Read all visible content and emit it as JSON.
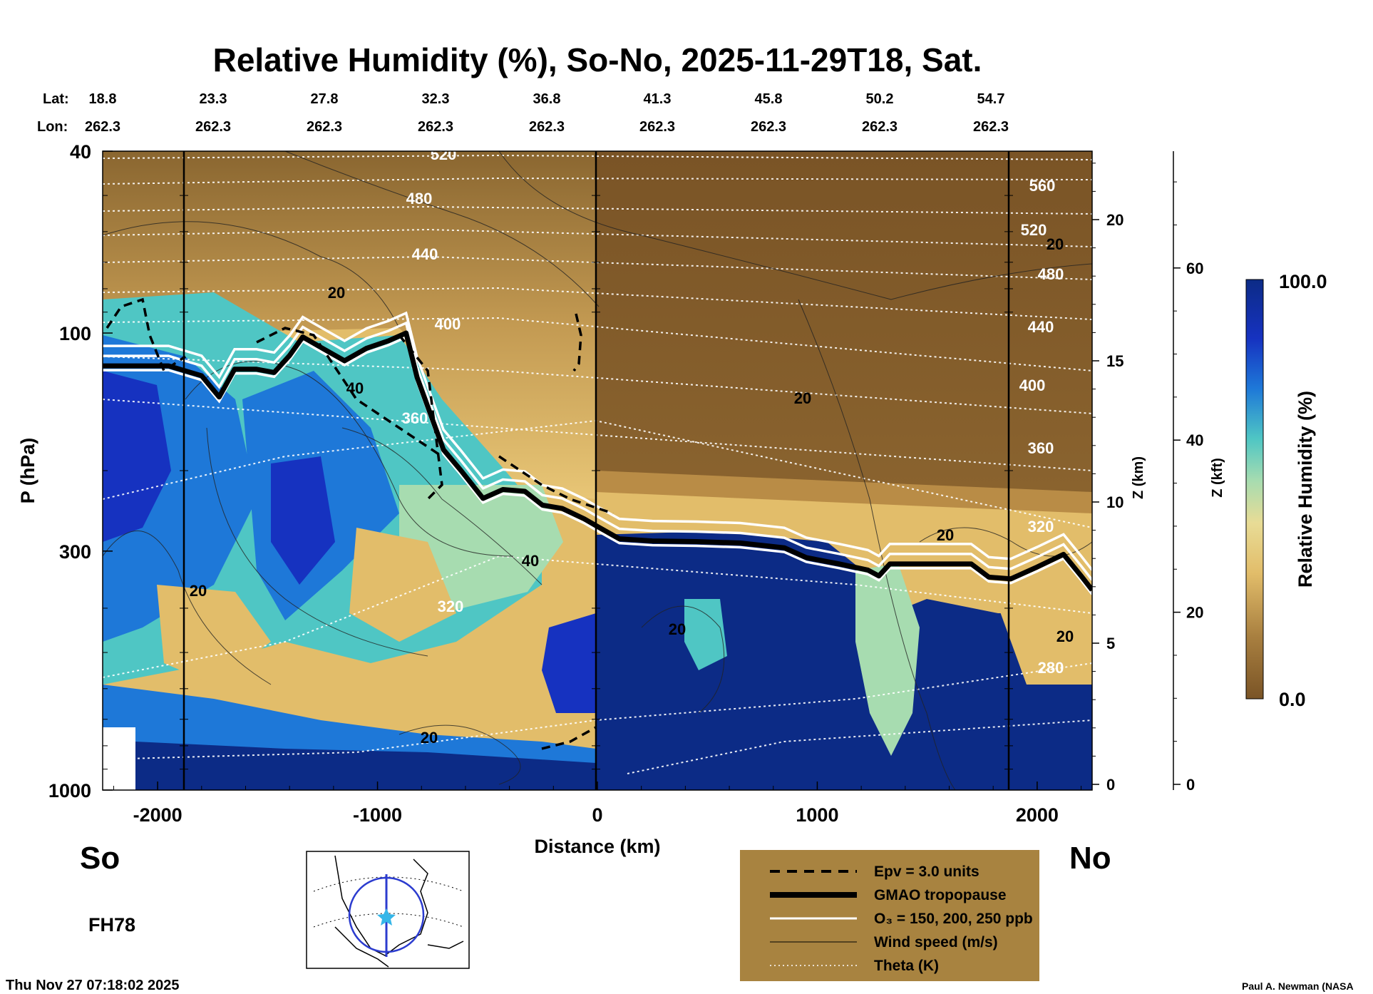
{
  "chart_data": {
    "type": "heatmap",
    "title": "Relative Humidity (%), So-No, 2025-11-29T18, Sat.",
    "xlabel": "Distance (km)",
    "ylabel": "P (hPa)",
    "xlim": [
      -2250,
      2250
    ],
    "ylim": [
      1000,
      40
    ],
    "y_scale": "log",
    "x_ticks": [
      -2000,
      -1000,
      0,
      1000,
      2000
    ],
    "y_ticks": [
      40,
      100,
      300,
      1000
    ],
    "z_km_label": "Z (km)",
    "z_km_ticks": [
      0,
      5,
      10,
      15,
      20
    ],
    "z_kft_label": "Z (kft)",
    "z_kft_ticks": [
      0,
      20,
      40,
      60
    ],
    "colorbar": {
      "label": "Relative Humidity (%)",
      "min": "0.0",
      "max": "100.0"
    },
    "lat_label": "Lat:",
    "lon_label": "Lon:",
    "lat": [
      "18.8",
      "23.3",
      "27.8",
      "32.3",
      "36.8",
      "41.3",
      "45.8",
      "50.2",
      "54.7"
    ],
    "lon": [
      "262.3",
      "262.3",
      "262.3",
      "262.3",
      "262.3",
      "262.3",
      "262.3",
      "262.3",
      "262.3"
    ],
    "theta_labels": [
      "520",
      "480",
      "440",
      "400",
      "360",
      "320",
      "560",
      "520",
      "480",
      "440",
      "400",
      "360",
      "320",
      "280"
    ],
    "wind_labels": [
      "20",
      "40",
      "40",
      "20",
      "20",
      "20",
      "20",
      "20",
      "20",
      "20"
    ],
    "tropopause": [
      {
        "x": -2250,
        "p": 118
      },
      {
        "x": -2050,
        "p": 118
      },
      {
        "x": -1950,
        "p": 118
      },
      {
        "x": -1800,
        "p": 124
      },
      {
        "x": -1720,
        "p": 138
      },
      {
        "x": -1650,
        "p": 120
      },
      {
        "x": -1550,
        "p": 120
      },
      {
        "x": -1470,
        "p": 122
      },
      {
        "x": -1400,
        "p": 112
      },
      {
        "x": -1340,
        "p": 102
      },
      {
        "x": -1250,
        "p": 108
      },
      {
        "x": -1150,
        "p": 115
      },
      {
        "x": -1050,
        "p": 108
      },
      {
        "x": -950,
        "p": 104
      },
      {
        "x": -870,
        "p": 100
      },
      {
        "x": -820,
        "p": 125
      },
      {
        "x": -760,
        "p": 150
      },
      {
        "x": -700,
        "p": 180
      },
      {
        "x": -620,
        "p": 200
      },
      {
        "x": -520,
        "p": 230
      },
      {
        "x": -430,
        "p": 220
      },
      {
        "x": -330,
        "p": 222
      },
      {
        "x": -250,
        "p": 238
      },
      {
        "x": -160,
        "p": 242
      },
      {
        "x": -60,
        "p": 255
      },
      {
        "x": 0,
        "p": 265
      },
      {
        "x": 100,
        "p": 282
      },
      {
        "x": 250,
        "p": 285
      },
      {
        "x": 450,
        "p": 286
      },
      {
        "x": 650,
        "p": 288
      },
      {
        "x": 850,
        "p": 295
      },
      {
        "x": 950,
        "p": 310
      },
      {
        "x": 1100,
        "p": 320
      },
      {
        "x": 1230,
        "p": 330
      },
      {
        "x": 1280,
        "p": 340
      },
      {
        "x": 1330,
        "p": 320
      },
      {
        "x": 1500,
        "p": 320
      },
      {
        "x": 1700,
        "p": 320
      },
      {
        "x": 1780,
        "p": 342
      },
      {
        "x": 1880,
        "p": 345
      },
      {
        "x": 2000,
        "p": 325
      },
      {
        "x": 2120,
        "p": 305
      },
      {
        "x": 2200,
        "p": 340
      },
      {
        "x": 2250,
        "p": 365
      }
    ],
    "legend": [
      {
        "label": "Epv = 3.0 units",
        "style": "dashed"
      },
      {
        "label": "GMAO tropopause",
        "style": "thick"
      },
      {
        "label": "O₃ = 150, 200, 250 ppb",
        "style": "white"
      },
      {
        "label": "Wind speed (m/s)",
        "style": "thin"
      },
      {
        "label": "Theta (K)",
        "style": "dotted"
      }
    ],
    "colors": {
      "dry": "#7a5426",
      "wet": "#0c2b86",
      "mid": "#4fc6c4",
      "legend_bg": "#a88340"
    }
  },
  "labels": {
    "south": "So",
    "north": "No",
    "forecast": "FH78",
    "timestamp": "Thu Nov 27 07:18:02 2025",
    "credit": "Paul A. Newman (NASA"
  }
}
